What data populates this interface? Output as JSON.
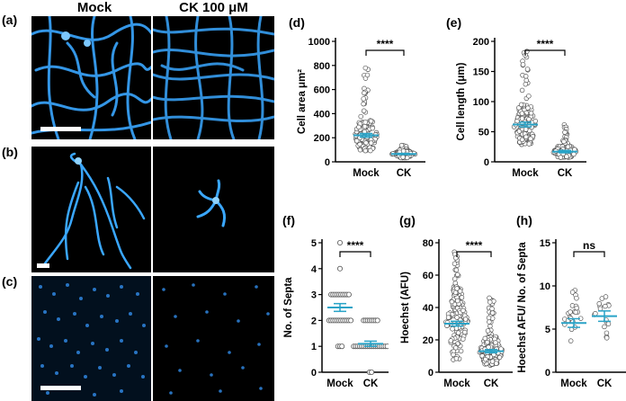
{
  "figure": {
    "column_titles": [
      "Mock",
      "CK 100 μM"
    ],
    "image_panels": [
      {
        "label": "(a)",
        "hoechst_stain_color": "#3aa7ff"
      },
      {
        "label": "(b)",
        "hoechst_stain_color": "#3aa7ff"
      },
      {
        "label": "(c)",
        "hoechst_stain_color": "#2f86e0"
      }
    ]
  },
  "chart_data": [
    {
      "panel": "(d)",
      "type": "scatter",
      "ylabel": "Cell area μm²",
      "categories": [
        "Mock",
        "CK"
      ],
      "yticks": [
        0,
        200,
        400,
        600,
        800,
        1000
      ],
      "ylim": [
        0,
        1000
      ],
      "series": [
        {
          "name": "Mock",
          "mean": 220,
          "sem_low": 205,
          "sem_high": 235,
          "min": 60,
          "max": 810
        },
        {
          "name": "CK",
          "mean": 65,
          "sem_low": 60,
          "sem_high": 70,
          "min": 25,
          "max": 140
        }
      ],
      "significance": "****"
    },
    {
      "panel": "(e)",
      "type": "scatter",
      "ylabel": "Cell length (μm)",
      "categories": [
        "Mock",
        "CK"
      ],
      "yticks": [
        0,
        50,
        100,
        150,
        200
      ],
      "ylim": [
        0,
        200
      ],
      "series": [
        {
          "name": "Mock",
          "mean": 62,
          "sem_low": 58,
          "sem_high": 66,
          "min": 20,
          "max": 185
        },
        {
          "name": "CK",
          "mean": 17,
          "sem_low": 15,
          "sem_high": 19,
          "min": 5,
          "max": 63
        }
      ],
      "significance": "****"
    },
    {
      "panel": "(f)",
      "type": "scatter",
      "ylabel": "No. of Septa",
      "categories": [
        "Mock",
        "CK"
      ],
      "yticks": [
        0,
        1,
        2,
        3,
        4,
        5
      ],
      "ylim": [
        0,
        5
      ],
      "series": [
        {
          "name": "Mock",
          "mean": 2.5,
          "sem_low": 2.35,
          "sem_high": 2.65,
          "levels": [
            1,
            2,
            3,
            4,
            5
          ]
        },
        {
          "name": "CK",
          "mean": 1.1,
          "sem_low": 1.0,
          "sem_high": 1.2,
          "levels": [
            0,
            1,
            2
          ]
        }
      ],
      "significance": "****"
    },
    {
      "panel": "(g)",
      "type": "scatter",
      "ylabel": "Hoechst (AFU)",
      "categories": [
        "Mock",
        "CK"
      ],
      "yticks": [
        0,
        20,
        40,
        60,
        80
      ],
      "ylim": [
        0,
        80
      ],
      "series": [
        {
          "name": "Mock",
          "mean": 30,
          "sem_low": 28.5,
          "sem_high": 31.5,
          "min": 2,
          "max": 75
        },
        {
          "name": "CK",
          "mean": 13,
          "sem_low": 12,
          "sem_high": 14,
          "min": 2,
          "max": 48
        }
      ],
      "significance": "****"
    },
    {
      "panel": "(h)",
      "type": "scatter",
      "ylabel": "Hoechst AFU/ No. of Septa",
      "categories": [
        "Mock",
        "CK"
      ],
      "yticks": [
        0,
        5,
        10,
        15
      ],
      "ylim": [
        0,
        15
      ],
      "series": [
        {
          "name": "Mock",
          "mean": 5.7,
          "sem_low": 5.2,
          "sem_high": 6.2,
          "min": 3,
          "max": 9.5
        },
        {
          "name": "CK",
          "mean": 6.5,
          "sem_low": 5.9,
          "sem_high": 7.1,
          "min": 3.3,
          "max": 10.5
        }
      ],
      "significance": "ns"
    }
  ],
  "style": {
    "mean_color": "#29a3c7",
    "point_color": "#555555",
    "axis_color": "#000000"
  }
}
